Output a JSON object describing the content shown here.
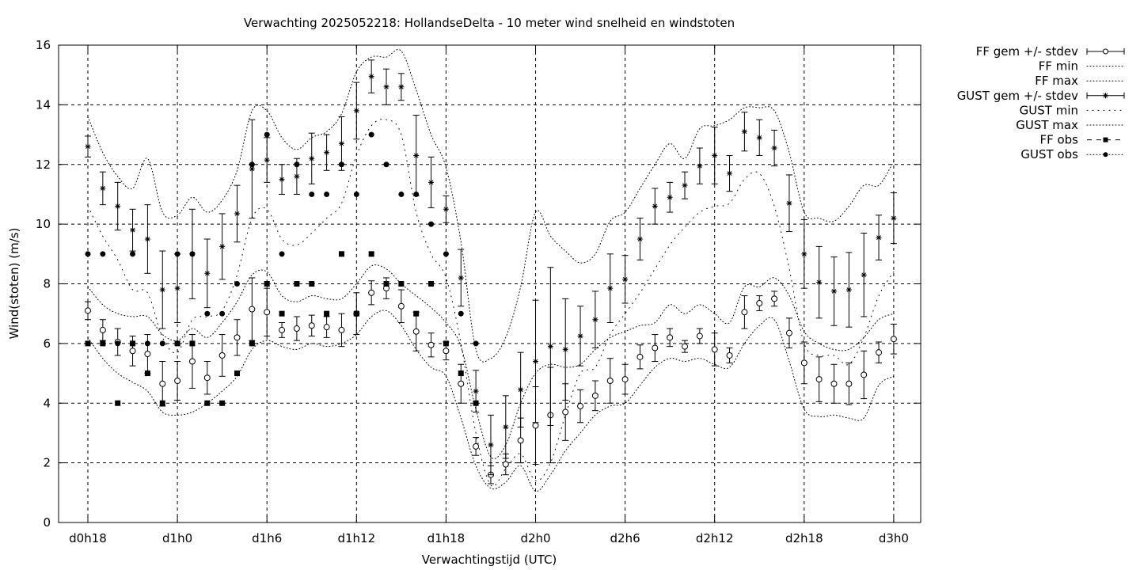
{
  "chart_data": {
    "type": "line",
    "title": "Verwachting 2025052218: HollandseDelta - 10 meter wind snelheid en windstoten",
    "xlabel": "Verwachtingstijd (UTC)",
    "ylabel": "Wind(stoten) (m/s)",
    "xlim": [
      -0.5,
      57
    ],
    "ylim": [
      0,
      16
    ],
    "x_unit": "hours since d0h18",
    "x_ticks": [
      {
        "x": 0,
        "label": "d0h18"
      },
      {
        "x": 6,
        "label": "d1h0"
      },
      {
        "x": 12,
        "label": "d1h6"
      },
      {
        "x": 18,
        "label": "d1h12"
      },
      {
        "x": 24,
        "label": "d1h18"
      },
      {
        "x": 30,
        "label": "d2h0"
      },
      {
        "x": 36,
        "label": "d2h6"
      },
      {
        "x": 42,
        "label": "d2h12"
      },
      {
        "x": 48,
        "label": "d2h18"
      },
      {
        "x": 54,
        "label": "d3h0"
      }
    ],
    "y_ticks": [
      0,
      2,
      4,
      6,
      8,
      10,
      12,
      14,
      16
    ],
    "grid": true,
    "legend_position": "outside-top-right",
    "legend": [
      {
        "label": "FF gem +/- stdev",
        "style": "errorbar-circle"
      },
      {
        "label": "FF min",
        "style": "dotted"
      },
      {
        "label": "FF max",
        "style": "dotted"
      },
      {
        "label": "GUST gem +/- stdev",
        "style": "errorbar-star"
      },
      {
        "label": "GUST min",
        "style": "dotted-sparse"
      },
      {
        "label": "GUST max",
        "style": "dotted"
      },
      {
        "label": "FF obs",
        "style": "dashed-square"
      },
      {
        "label": "GUST obs",
        "style": "dotted-circle"
      }
    ],
    "x": [
      0,
      1,
      2,
      3,
      4,
      5,
      6,
      7,
      8,
      9,
      10,
      11,
      12,
      13,
      14,
      15,
      16,
      17,
      18,
      19,
      20,
      21,
      22,
      23,
      24,
      25,
      26,
      27,
      28,
      29,
      30,
      31,
      32,
      33,
      34,
      35,
      36,
      37,
      38,
      39,
      40,
      41,
      42,
      43,
      44,
      45,
      46,
      47,
      48,
      49,
      50,
      51,
      52,
      53,
      54
    ],
    "series": [
      {
        "name": "FF gem +/- stdev",
        "mean": [
          7.1,
          6.45,
          6.05,
          5.75,
          5.65,
          4.65,
          4.75,
          5.4,
          4.85,
          5.6,
          6.2,
          7.15,
          7.05,
          6.45,
          6.5,
          6.6,
          6.55,
          6.45,
          7.0,
          7.7,
          7.85,
          7.25,
          6.4,
          5.95,
          5.75,
          4.65,
          2.55,
          1.6,
          1.95,
          2.75,
          3.25,
          3.6,
          3.7,
          3.9,
          4.25,
          4.75,
          4.8,
          5.55,
          5.85,
          6.2,
          5.9,
          6.25,
          5.8,
          5.6,
          7.05,
          7.35,
          7.5,
          6.35,
          5.35,
          4.8,
          4.65,
          4.65,
          4.95,
          5.7,
          6.15
        ],
        "stdev": [
          0.3,
          0.35,
          0.45,
          0.5,
          0.65,
          0.75,
          0.65,
          0.9,
          0.55,
          0.7,
          0.6,
          1.05,
          0.8,
          0.25,
          0.4,
          0.35,
          0.35,
          0.55,
          0.7,
          0.4,
          0.35,
          0.55,
          0.65,
          0.4,
          0.3,
          0.65,
          0.3,
          0.3,
          0.35,
          0.75,
          1.3,
          1.6,
          0.95,
          0.55,
          0.5,
          0.75,
          0.5,
          0.4,
          0.45,
          0.3,
          0.2,
          0.25,
          0.55,
          0.25,
          0.55,
          0.25,
          0.25,
          0.5,
          0.7,
          0.75,
          0.65,
          0.7,
          0.8,
          0.35,
          0.5
        ]
      },
      {
        "name": "FF min",
        "values": [
          6.2,
          5.5,
          5.0,
          4.7,
          4.4,
          3.7,
          3.6,
          3.7,
          4.0,
          4.4,
          4.9,
          5.8,
          6.1,
          5.9,
          5.8,
          6.0,
          5.9,
          6.0,
          6.3,
          6.9,
          7.1,
          6.6,
          5.8,
          5.2,
          4.9,
          3.5,
          1.9,
          1.15,
          1.35,
          1.9,
          1.05,
          1.6,
          2.4,
          3.0,
          3.6,
          3.9,
          4.0,
          4.6,
          5.2,
          5.5,
          5.4,
          5.5,
          5.3,
          5.2,
          6.0,
          6.6,
          6.8,
          5.4,
          3.8,
          3.55,
          3.6,
          3.5,
          3.5,
          4.6,
          4.9
        ]
      },
      {
        "name": "FF max",
        "values": [
          7.9,
          7.3,
          7.0,
          6.9,
          6.9,
          6.3,
          6.1,
          6.5,
          6.2,
          6.7,
          7.4,
          8.3,
          8.4,
          7.6,
          7.4,
          7.6,
          7.5,
          7.5,
          8.0,
          8.6,
          8.5,
          8.0,
          7.6,
          7.2,
          6.7,
          5.9,
          3.8,
          2.2,
          2.6,
          4.0,
          5.0,
          5.3,
          5.2,
          5.3,
          5.8,
          6.2,
          6.4,
          6.6,
          6.7,
          7.3,
          7.0,
          7.3,
          7.0,
          6.7,
          7.9,
          7.9,
          8.2,
          7.6,
          6.4,
          6.0,
          5.8,
          5.8,
          6.2,
          6.8,
          7.0
        ]
      },
      {
        "name": "GUST gem +/- stdev",
        "mean": [
          12.6,
          11.2,
          10.6,
          9.8,
          9.5,
          7.8,
          7.85,
          9.0,
          8.35,
          9.25,
          10.35,
          11.85,
          12.15,
          11.5,
          11.6,
          12.2,
          12.4,
          12.7,
          13.8,
          14.95,
          14.6,
          14.6,
          12.3,
          11.4,
          10.5,
          8.2,
          4.4,
          2.6,
          3.2,
          4.45,
          5.4,
          5.9,
          5.8,
          6.25,
          6.8,
          7.85,
          8.15,
          9.5,
          10.6,
          10.9,
          11.3,
          11.95,
          12.3,
          11.7,
          13.1,
          12.9,
          12.55,
          10.7,
          9.0,
          8.05,
          7.75,
          7.8,
          8.3,
          9.55,
          10.2
        ],
        "stdev": [
          0.35,
          0.55,
          0.8,
          0.7,
          1.15,
          1.3,
          1.15,
          1.5,
          1.15,
          1.1,
          0.95,
          1.65,
          0.75,
          0.5,
          0.6,
          0.85,
          0.6,
          0.9,
          0.95,
          0.55,
          0.6,
          0.45,
          1.35,
          0.85,
          0.45,
          0.95,
          0.7,
          1.0,
          1.05,
          1.25,
          2.05,
          2.65,
          1.7,
          1.0,
          0.95,
          1.15,
          0.8,
          0.7,
          0.6,
          0.5,
          0.45,
          0.6,
          0.95,
          0.6,
          0.65,
          0.6,
          0.6,
          0.95,
          1.15,
          1.2,
          1.15,
          1.25,
          1.4,
          0.75,
          0.85
        ]
      },
      {
        "name": "GUST min",
        "values": [
          10.6,
          9.6,
          8.8,
          7.8,
          7.7,
          6.2,
          5.7,
          6.8,
          6.9,
          7.1,
          8.3,
          10.2,
          10.5,
          9.5,
          9.3,
          9.7,
          10.2,
          10.7,
          12.3,
          13.3,
          13.5,
          13.0,
          10.4,
          9.0,
          8.2,
          6.0,
          3.0,
          1.25,
          1.8,
          2.3,
          1.4,
          2.0,
          3.6,
          5.0,
          5.2,
          6.3,
          7.0,
          7.7,
          8.5,
          9.3,
          9.9,
          10.4,
          10.6,
          10.7,
          11.5,
          11.7,
          10.6,
          8.5,
          6.0,
          5.6,
          5.6,
          5.3,
          6.2,
          7.6,
          8.4
        ]
      },
      {
        "name": "GUST max",
        "values": [
          13.6,
          12.4,
          11.6,
          11.2,
          12.2,
          10.4,
          10.3,
          10.9,
          10.4,
          10.8,
          11.8,
          13.8,
          13.8,
          12.9,
          12.5,
          12.9,
          13.1,
          13.7,
          15.1,
          15.6,
          15.6,
          15.8,
          14.5,
          13.0,
          11.9,
          9.4,
          5.8,
          5.5,
          6.2,
          7.9,
          10.4,
          9.6,
          9.1,
          8.7,
          9.0,
          10.1,
          10.4,
          11.2,
          12.0,
          12.7,
          12.2,
          13.2,
          13.3,
          13.5,
          13.9,
          13.9,
          13.8,
          12.4,
          10.4,
          10.2,
          10.1,
          10.6,
          11.3,
          11.3,
          12.1
        ]
      },
      {
        "name": "FF obs",
        "values": [
          6,
          6,
          4,
          6,
          5,
          4,
          6,
          6,
          4,
          4,
          5,
          6,
          8,
          7,
          8,
          8,
          7,
          9,
          7,
          9,
          8,
          8,
          7,
          8,
          6,
          5,
          4,
          null,
          null,
          null,
          null,
          null,
          null,
          null,
          null,
          null,
          null,
          null,
          null,
          null,
          null,
          null,
          null,
          null,
          null,
          null,
          null,
          null,
          null,
          null,
          null,
          null,
          null,
          null,
          null
        ]
      },
      {
        "name": "GUST obs",
        "values": [
          9,
          9,
          6,
          9,
          6,
          6,
          9,
          9,
          7,
          7,
          8,
          12,
          13,
          9,
          12,
          11,
          11,
          12,
          11,
          13,
          12,
          11,
          11,
          10,
          9,
          7,
          6,
          null,
          null,
          null,
          null,
          null,
          null,
          null,
          null,
          null,
          null,
          null,
          null,
          null,
          null,
          null,
          null,
          null,
          null,
          null,
          null,
          null,
          null,
          null,
          null,
          null,
          null,
          null,
          null
        ]
      }
    ]
  }
}
